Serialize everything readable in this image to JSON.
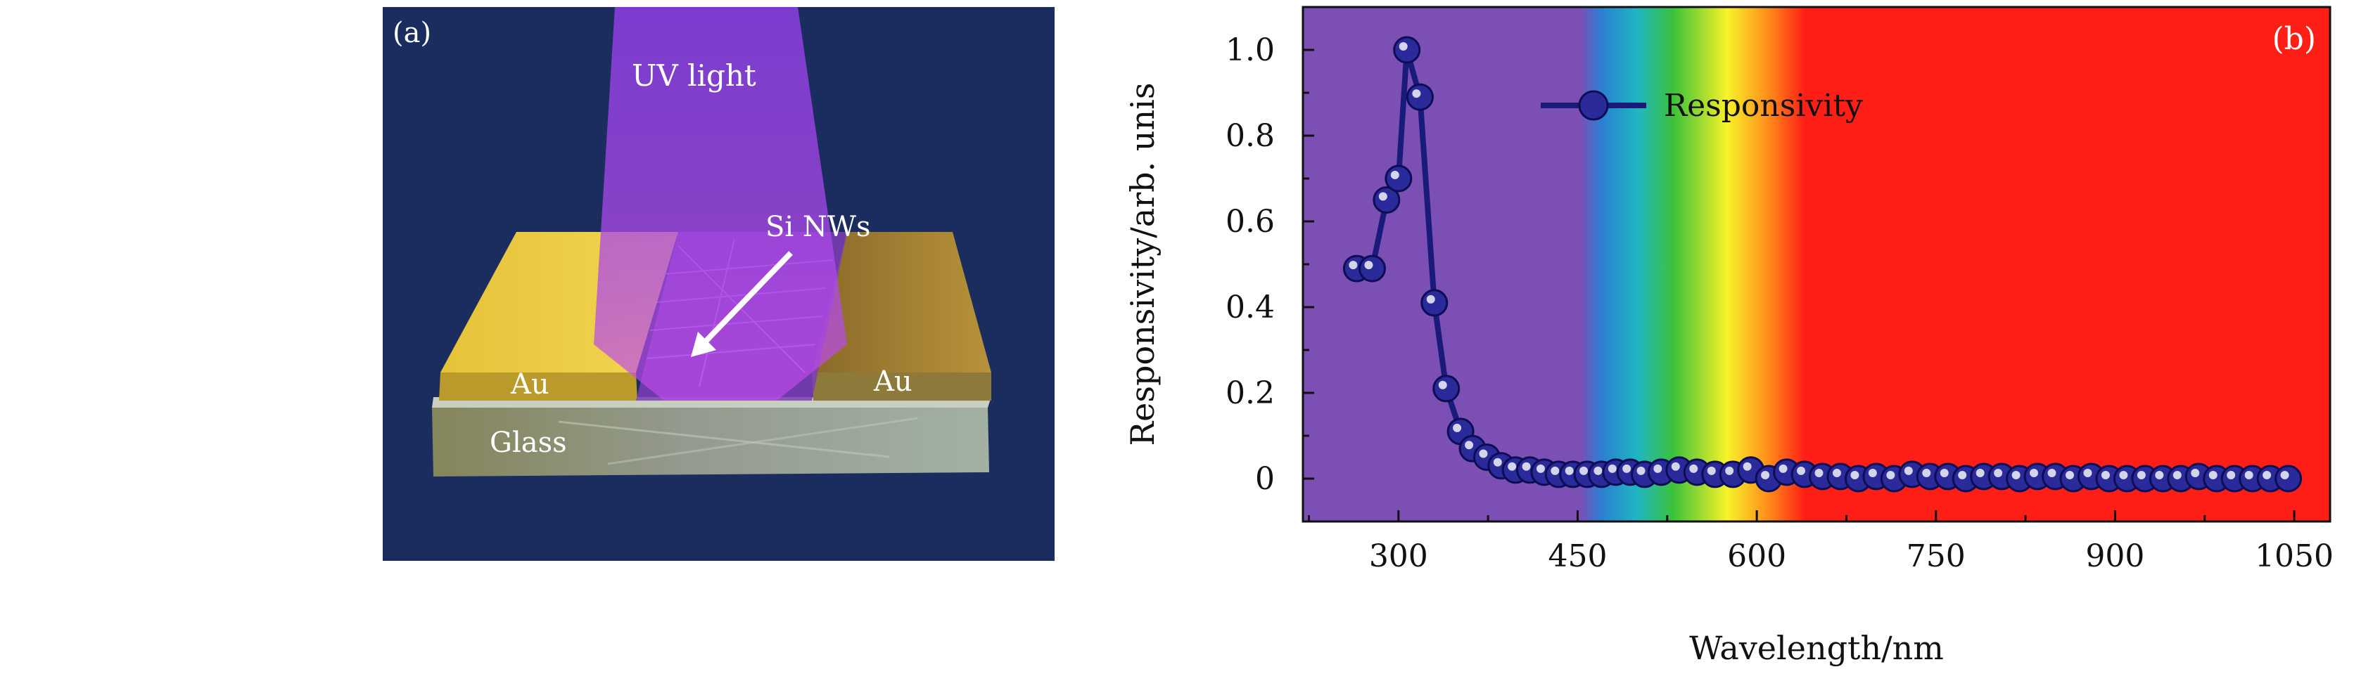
{
  "panel_a": {
    "panel_label": "(a)",
    "uv_label": "UV light",
    "nw_label": "Si NWs",
    "left_electrode_label": "Au",
    "right_electrode_label": "Au",
    "substrate_label": "Glass",
    "colors": {
      "background": "#1b2d5e",
      "gold": "#e8c83a",
      "uv_beam": "#9b3fe0",
      "glass": "#9aa28a"
    }
  },
  "chart_data": {
    "type": "scatter",
    "panel_label": "(b)",
    "xlabel": "Wavelength/nm",
    "ylabel": "Responsivity/arb. unis",
    "xlim": [
      220,
      1080
    ],
    "ylim": [
      -0.1,
      1.1
    ],
    "xticks": [
      300,
      450,
      600,
      750,
      900,
      1050
    ],
    "yticks": [
      0,
      0.2,
      0.4,
      0.6,
      0.8,
      1.0
    ],
    "ytick_labels": [
      "0",
      "0.2",
      "0.4",
      "0.6",
      "0.8",
      "1.0"
    ],
    "grid": false,
    "legend_position": "top-right",
    "background_spectrum": {
      "violet_until_nm": 460,
      "red_from_nm": 640,
      "colors": {
        "violet": "#7b4fb4",
        "blue": "#2b7fd0",
        "cyan": "#1fb6c2",
        "green": "#3cc23a",
        "yellow": "#f7f22a",
        "orange": "#ff8c1a",
        "red": "#ff1f16"
      }
    },
    "series": [
      {
        "name": "Responsivity",
        "color": "#1a1a7a",
        "x": [
          265,
          278,
          290,
          300,
          307,
          318,
          330,
          340,
          352,
          362,
          374,
          386,
          398,
          410,
          422,
          434,
          446,
          458,
          470,
          482,
          494,
          506,
          520,
          535,
          550,
          565,
          580,
          595,
          610,
          625,
          640,
          655,
          670,
          685,
          700,
          715,
          730,
          745,
          760,
          775,
          790,
          805,
          820,
          835,
          850,
          865,
          880,
          895,
          910,
          925,
          940,
          955,
          970,
          985,
          1000,
          1015,
          1030,
          1045
        ],
        "y": [
          0.49,
          0.49,
          0.65,
          0.7,
          1.0,
          0.89,
          0.41,
          0.21,
          0.11,
          0.07,
          0.05,
          0.03,
          0.02,
          0.02,
          0.015,
          0.01,
          0.01,
          0.01,
          0.01,
          0.015,
          0.015,
          0.01,
          0.015,
          0.02,
          0.015,
          0.01,
          0.01,
          0.02,
          0.0,
          0.015,
          0.01,
          0.005,
          0.005,
          0.0,
          0.005,
          0.0,
          0.01,
          0.005,
          0.005,
          0.0,
          0.005,
          0.005,
          0.0,
          0.005,
          0.005,
          0.0,
          0.005,
          0.0,
          0.0,
          0.0,
          0.0,
          0.0,
          0.005,
          0.0,
          0.0,
          0.0,
          0.0,
          0.0
        ]
      }
    ]
  }
}
